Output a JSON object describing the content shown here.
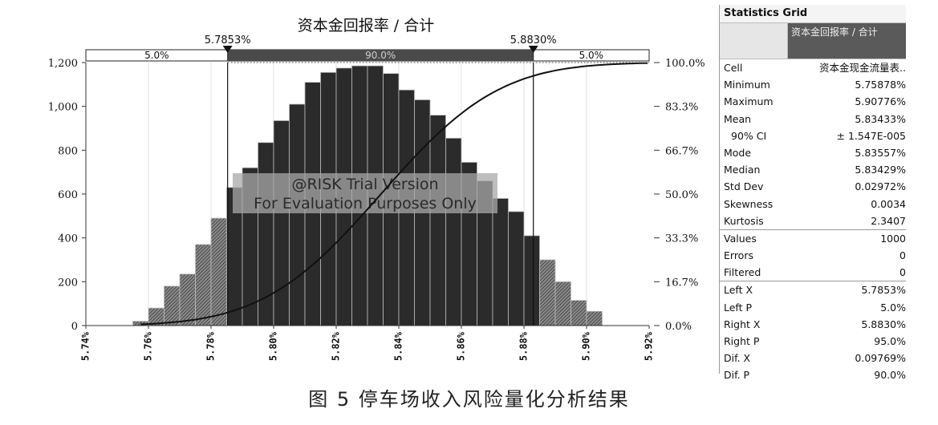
{
  "chart_data": {
    "type": "bar",
    "title": "资本金回报率 / 合计",
    "x_ticks": [
      "5.74%",
      "5.76%",
      "5.78%",
      "5.80%",
      "5.82%",
      "5.84%",
      "5.86%",
      "5.88%",
      "5.90%",
      "5.92%"
    ],
    "x_tick_values": [
      5.74,
      5.76,
      5.78,
      5.8,
      5.82,
      5.84,
      5.86,
      5.88,
      5.9,
      5.92
    ],
    "xlim": [
      5.74,
      5.92
    ],
    "ylim": [
      0,
      1200
    ],
    "y_ticks": [
      "0",
      "200",
      "400",
      "600",
      "800",
      "1,000",
      "1,200"
    ],
    "y_tick_values": [
      0,
      200,
      400,
      600,
      800,
      1000,
      1200
    ],
    "y2_ticks": [
      "0.0%",
      "16.7%",
      "33.3%",
      "50.0%",
      "66.7%",
      "83.3%",
      "100.0%"
    ],
    "bin_width": 0.005,
    "bins": [
      {
        "x": 5.7575,
        "count": 20
      },
      {
        "x": 5.7625,
        "count": 80
      },
      {
        "x": 5.7675,
        "count": 180
      },
      {
        "x": 5.7725,
        "count": 235
      },
      {
        "x": 5.7775,
        "count": 370
      },
      {
        "x": 5.7825,
        "count": 490
      },
      {
        "x": 5.7875,
        "count": 630
      },
      {
        "x": 5.7925,
        "count": 720
      },
      {
        "x": 5.7975,
        "count": 835
      },
      {
        "x": 5.8025,
        "count": 935
      },
      {
        "x": 5.8075,
        "count": 1010
      },
      {
        "x": 5.8125,
        "count": 1110
      },
      {
        "x": 5.8175,
        "count": 1155
      },
      {
        "x": 5.8225,
        "count": 1175
      },
      {
        "x": 5.8275,
        "count": 1185
      },
      {
        "x": 5.8325,
        "count": 1185
      },
      {
        "x": 5.8375,
        "count": 1150
      },
      {
        "x": 5.8425,
        "count": 1075
      },
      {
        "x": 5.8475,
        "count": 1030
      },
      {
        "x": 5.8525,
        "count": 960
      },
      {
        "x": 5.8575,
        "count": 855
      },
      {
        "x": 5.8625,
        "count": 745
      },
      {
        "x": 5.8675,
        "count": 660
      },
      {
        "x": 5.8725,
        "count": 580
      },
      {
        "x": 5.8775,
        "count": 520
      },
      {
        "x": 5.8825,
        "count": 410
      },
      {
        "x": 5.8875,
        "count": 300
      },
      {
        "x": 5.8925,
        "count": 200
      },
      {
        "x": 5.8975,
        "count": 115
      },
      {
        "x": 5.9025,
        "count": 65
      }
    ],
    "left_marker": {
      "value": 5.7853,
      "label": "5.7853%"
    },
    "right_marker": {
      "value": 5.883,
      "label": "5.8830%"
    },
    "band_labels": {
      "left": "5.0%",
      "middle": "90.0%",
      "right": "5.0%"
    },
    "cumulative_curve": {
      "mean": 5.8343,
      "sd": 0.0297
    },
    "watermark": [
      "@RISK Trial Version",
      "For Evaluation Purposes Only"
    ],
    "colors": {
      "inside_bar": "#2b2b2b",
      "outside_bar": "#6a6a6a",
      "curve": "#111111",
      "middle_band": "#4a4a4a"
    }
  },
  "stats_grid": {
    "title": "Statistics Grid",
    "column_header": "资本金回报率 / 合计",
    "rows": [
      {
        "key": "Cell",
        "value": "资本金现金流量表..",
        "indent": false
      },
      {
        "key": "Minimum",
        "value": "5.75878%",
        "indent": false
      },
      {
        "key": "Maximum",
        "value": "5.90776%",
        "indent": false
      },
      {
        "key": "Mean",
        "value": "5.83433%",
        "indent": false
      },
      {
        "key": "90% CI",
        "value": "± 1.547E-005",
        "indent": true
      },
      {
        "key": "Mode",
        "value": "5.83557%",
        "indent": false
      },
      {
        "key": "Median",
        "value": "5.83429%",
        "indent": false
      },
      {
        "key": "Std Dev",
        "value": "0.02972%",
        "indent": false
      },
      {
        "key": "Skewness",
        "value": "0.0034",
        "indent": false
      },
      {
        "key": "Kurtosis",
        "value": "2.3407",
        "indent": false
      },
      {
        "key": "Values",
        "value": "1000",
        "indent": false
      },
      {
        "key": "Errors",
        "value": "0",
        "indent": false
      },
      {
        "key": "Filtered",
        "value": "0",
        "indent": false
      },
      {
        "key": "Left X",
        "value": "5.7853%",
        "indent": false
      },
      {
        "key": "Left P",
        "value": "5.0%",
        "indent": false
      },
      {
        "key": "Right X",
        "value": "5.8830%",
        "indent": false
      },
      {
        "key": "Right P",
        "value": "95.0%",
        "indent": false
      },
      {
        "key": "Dif. X",
        "value": "0.09769%",
        "indent": false
      },
      {
        "key": "Dif. P",
        "value": "90.0%",
        "indent": false
      }
    ]
  },
  "caption": "图 5   停车场收入风险量化分析结果"
}
